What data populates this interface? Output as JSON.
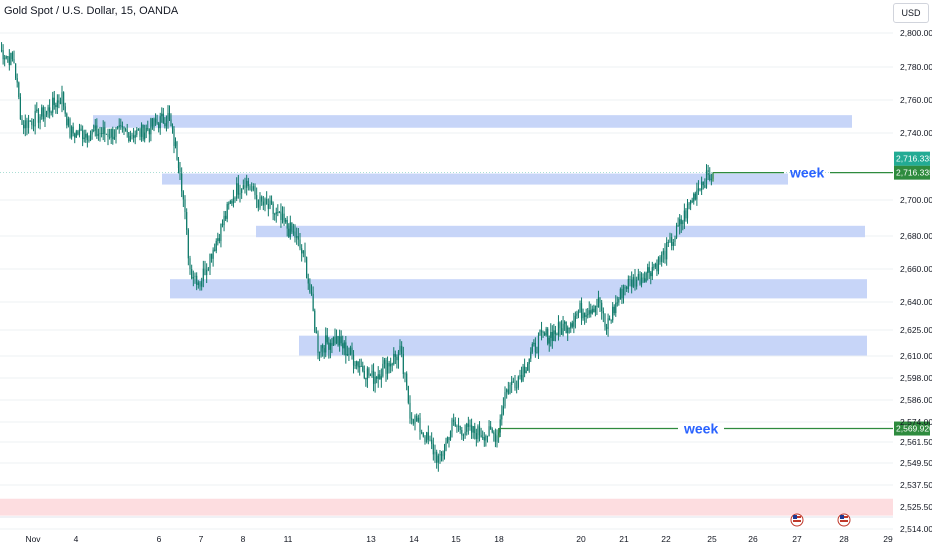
{
  "header": {
    "title": "Gold Spot / U.S. Dollar, 15, OANDA",
    "currency": "USD"
  },
  "colors": {
    "candle": "#0f7a6a",
    "zone": "#c7d5f8",
    "red_zone": "#fddde0",
    "price_badge": "#22ab94",
    "level_line": "#2e8b3e",
    "week_text": "#2962ff",
    "axis_text": "#131722",
    "grid": "#eef0f3"
  },
  "chart_data": {
    "type": "candlestick",
    "title": "Gold Spot / U.S. Dollar, 15, OANDA",
    "y_ticks": [
      "2,800.000",
      "2,780.000",
      "2,760.000",
      "2,740.000",
      "2,700.000",
      "2,680.000",
      "2,660.000",
      "2,640.000",
      "2,625.000",
      "2,610.000",
      "2,598.000",
      "2,586.000",
      "2,574.000",
      "2,561.500",
      "2,549.500",
      "2,537.500",
      "2,525.500",
      "2,514.000"
    ],
    "x_ticks": [
      "Nov",
      "4",
      "6",
      "7",
      "8",
      "11",
      "13",
      "14",
      "15",
      "18",
      "20",
      "21",
      "22",
      "25",
      "26",
      "27",
      "28",
      "29"
    ],
    "price_path": [
      [
        "Nov",
        2790
      ],
      [
        "Nov",
        2780
      ],
      [
        "4",
        2745
      ],
      [
        "4",
        2755
      ],
      [
        "4",
        2760
      ],
      [
        "6",
        2740
      ],
      [
        "6",
        2750
      ],
      [
        "6",
        2735
      ],
      [
        "6",
        2700
      ],
      [
        "7",
        2660
      ],
      [
        "7",
        2650
      ],
      [
        "7",
        2665
      ],
      [
        "8",
        2700
      ],
      [
        "8",
        2712
      ],
      [
        "8",
        2702
      ],
      [
        "11",
        2695
      ],
      [
        "11",
        2680
      ],
      [
        "11",
        2650
      ],
      [
        "11",
        2625
      ],
      [
        "13",
        2612
      ],
      [
        "13",
        2595
      ],
      [
        "13",
        2605
      ],
      [
        "14",
        2575
      ],
      [
        "14",
        2555
      ],
      [
        "14",
        2540
      ],
      [
        "15",
        2570
      ],
      [
        "15",
        2565
      ],
      [
        "18",
        2566
      ],
      [
        "18",
        2575
      ],
      [
        "18",
        2600
      ],
      [
        "20",
        2625
      ],
      [
        "20",
        2640
      ],
      [
        "20",
        2625
      ],
      [
        "21",
        2645
      ],
      [
        "21",
        2660
      ],
      [
        "22",
        2680
      ],
      [
        "22",
        2690
      ],
      [
        "25",
        2712
      ],
      [
        "25",
        2716
      ]
    ],
    "zones": [
      {
        "from": "4",
        "to": "27",
        "low": 2745,
        "high": 2749
      },
      {
        "from": "6",
        "to": "26",
        "low": 2711,
        "high": 2714
      },
      {
        "from": "8",
        "to": "28",
        "low": 2681,
        "high": 2684
      },
      {
        "from": "6",
        "to": "28",
        "low": 2644,
        "high": 2652
      },
      {
        "from": "11",
        "to": "28",
        "low": 2612,
        "high": 2620
      }
    ],
    "red_zone": {
      "low": 2521,
      "high": 2530
    },
    "levels": [
      {
        "label": "week",
        "price": "2,716.335",
        "value": 2716.335
      },
      {
        "label": "week",
        "price": "2,569.920",
        "value": 2569.92
      }
    ],
    "current_price": "2,716.335",
    "event_icons": [
      "27",
      "28"
    ]
  }
}
